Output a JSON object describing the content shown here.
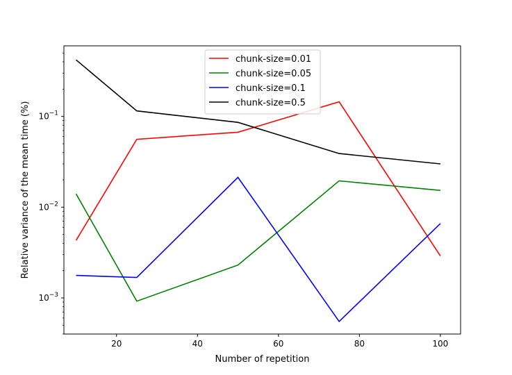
{
  "chart_data": {
    "type": "line",
    "title": "",
    "xlabel": "Number of repetition",
    "ylabel": "Relative variance of the mean time (%)",
    "xlim": [
      7,
      105
    ],
    "ylim": [
      0.0004,
      0.6
    ],
    "yscale": "log",
    "grid": false,
    "legend_position": "top-center",
    "x_ticks": [
      20,
      40,
      60,
      80,
      100
    ],
    "y_ticks": [
      {
        "value": 0.001,
        "base": "10",
        "exp": "−3"
      },
      {
        "value": 0.01,
        "base": "10",
        "exp": "−2"
      },
      {
        "value": 0.1,
        "base": "10",
        "exp": "−1"
      }
    ],
    "x": [
      10,
      25,
      50,
      75,
      100
    ],
    "series": [
      {
        "name": "chunk-size=0.01",
        "color": "#ff0000",
        "values": [
          0.0043,
          0.056,
          0.067,
          0.145,
          0.0029
        ]
      },
      {
        "name": "chunk-size=0.05",
        "color": "#008000",
        "values": [
          0.014,
          0.00092,
          0.0023,
          0.0195,
          0.0153
        ]
      },
      {
        "name": "chunk-size=0.1",
        "color": "#0000ff",
        "values": [
          0.00177,
          0.00168,
          0.0213,
          0.00055,
          0.0066
        ]
      },
      {
        "name": "chunk-size=0.5",
        "color": "#000000",
        "values": [
          0.42,
          0.115,
          0.086,
          0.039,
          0.03
        ]
      }
    ]
  }
}
